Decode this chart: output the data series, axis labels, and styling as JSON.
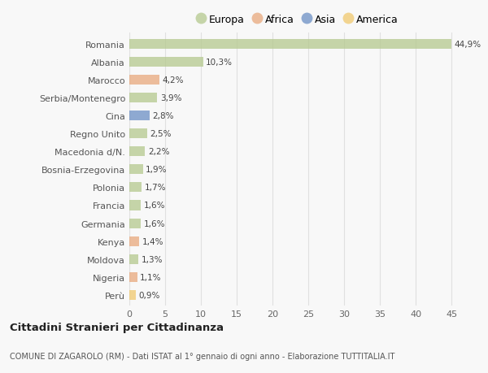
{
  "categories": [
    "Romania",
    "Albania",
    "Marocco",
    "Serbia/Montenegro",
    "Cina",
    "Regno Unito",
    "Macedonia d/N.",
    "Bosnia-Erzegovina",
    "Polonia",
    "Francia",
    "Germania",
    "Kenya",
    "Moldova",
    "Nigeria",
    "Perù"
  ],
  "values": [
    44.9,
    10.3,
    4.2,
    3.9,
    2.8,
    2.5,
    2.2,
    1.9,
    1.7,
    1.6,
    1.6,
    1.4,
    1.3,
    1.1,
    0.9
  ],
  "labels": [
    "44,9%",
    "10,3%",
    "4,2%",
    "3,9%",
    "2,8%",
    "2,5%",
    "2,2%",
    "1,9%",
    "1,7%",
    "1,6%",
    "1,6%",
    "1,4%",
    "1,3%",
    "1,1%",
    "0,9%"
  ],
  "continents": [
    "Europa",
    "Europa",
    "Africa",
    "Europa",
    "Asia",
    "Europa",
    "Europa",
    "Europa",
    "Europa",
    "Europa",
    "Europa",
    "Africa",
    "Europa",
    "Africa",
    "America"
  ],
  "continent_colors": {
    "Europa": "#b5c98e",
    "Africa": "#e8a87c",
    "Asia": "#6b8fc4",
    "America": "#f0c96e"
  },
  "legend_order": [
    "Europa",
    "Africa",
    "Asia",
    "America"
  ],
  "title": "Cittadini Stranieri per Cittadinanza",
  "subtitle": "COMUNE DI ZAGAROLO (RM) - Dati ISTAT al 1° gennaio di ogni anno - Elaborazione TUTTITALIA.IT",
  "xlim": [
    0,
    47
  ],
  "xticks": [
    0,
    5,
    10,
    15,
    20,
    25,
    30,
    35,
    40,
    45
  ],
  "background_color": "#f8f8f8",
  "grid_color": "#e0e0e0",
  "bar_alpha": 0.75
}
